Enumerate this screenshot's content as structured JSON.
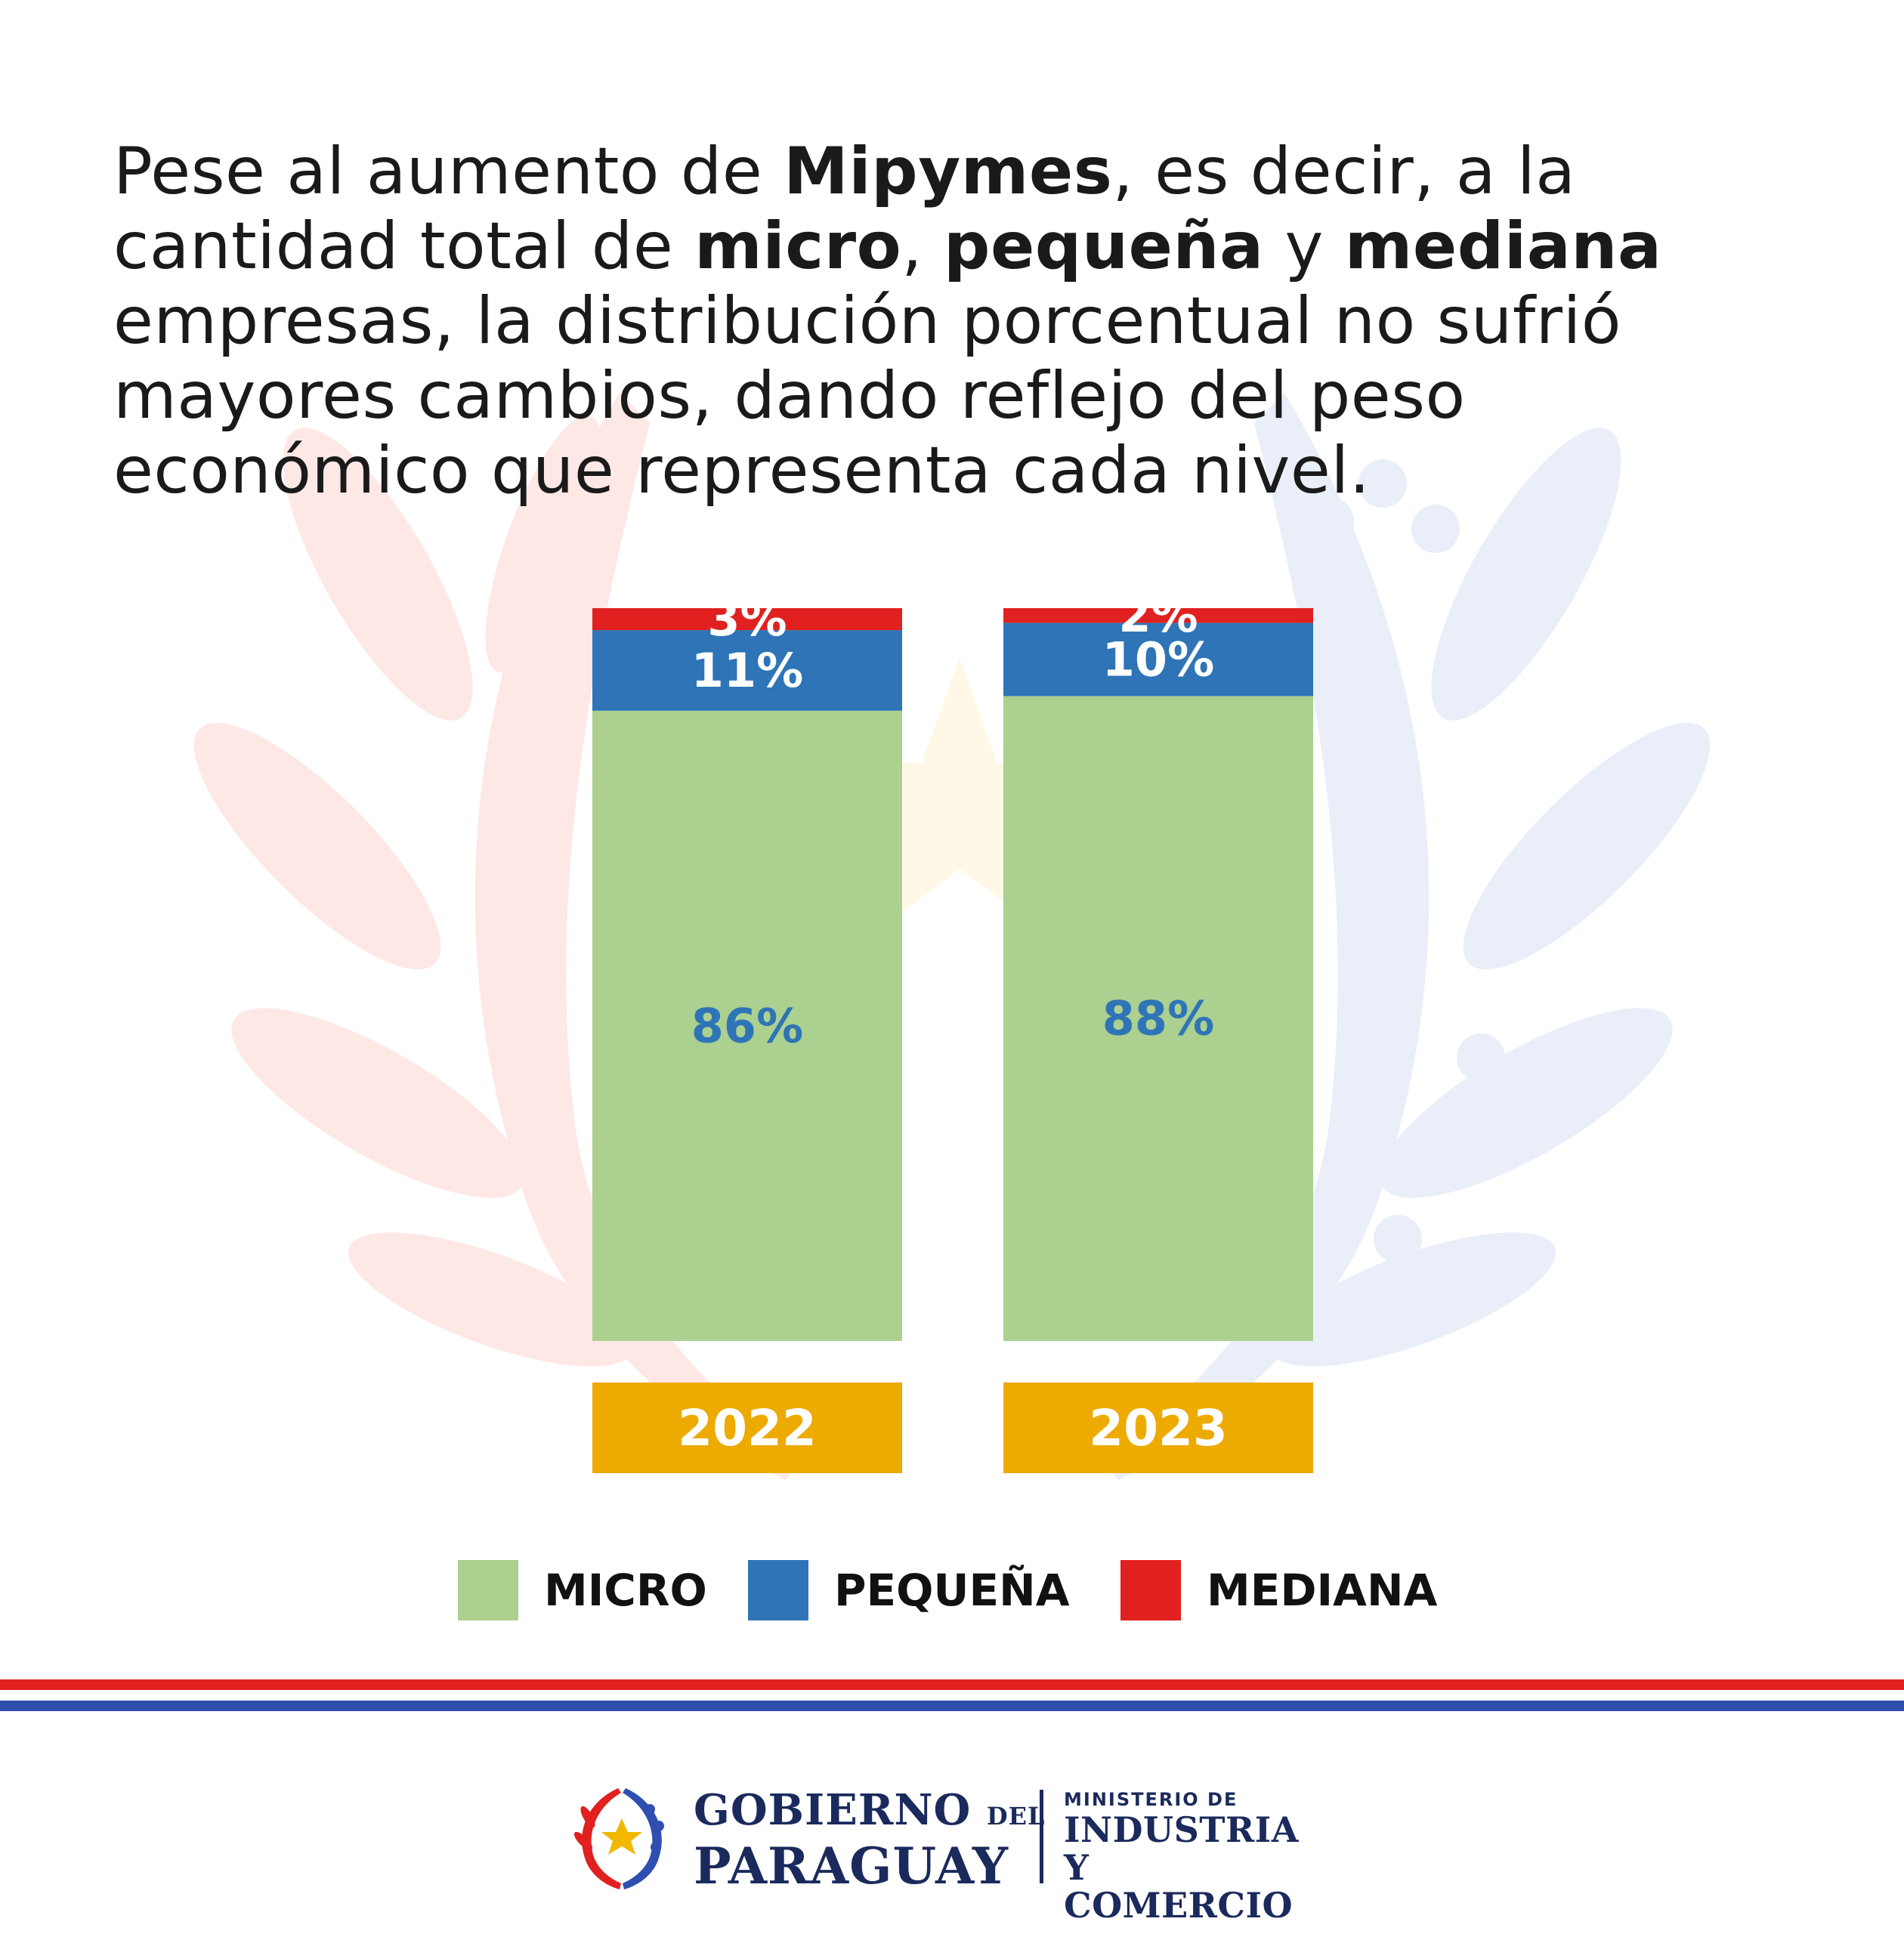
{
  "intro": {
    "p1": "Pese al aumento de ",
    "b1": "Mipymes",
    "p2": ", es decir, a la cantidad total de ",
    "b2": "micro",
    "p3": ", ",
    "b3": "pequeña",
    "p4": " y ",
    "b4": "mediana",
    "p5": " empresas, la distribución porcentual no sufrió mayores cambios, dando reflejo del peso económico que representa cada nivel."
  },
  "colors": {
    "micro": "#abd08f",
    "pequena": "#2e74b7",
    "mediana": "#e0211f",
    "year_box": "#edaa00",
    "micro_label": "#2e74b7",
    "label_white": "#ffffff"
  },
  "chart_data": {
    "type": "bar",
    "stacked": true,
    "normalized_100": true,
    "categories": [
      "2022",
      "2023"
    ],
    "series": [
      {
        "name": "MICRO",
        "values": [
          86,
          88
        ],
        "labels": [
          "86%",
          "88%"
        ]
      },
      {
        "name": "PEQUEÑA",
        "values": [
          11,
          10
        ],
        "labels": [
          "11%",
          "10%"
        ]
      },
      {
        "name": "MEDIANA",
        "values": [
          3,
          2
        ],
        "labels": [
          "3%",
          "2%"
        ]
      }
    ],
    "legend": "bottom"
  },
  "legend": {
    "micro": "MICRO",
    "pequena": "PEQUEÑA",
    "mediana": "MEDIANA"
  },
  "footer": {
    "gov_line1": "GOBIERNO",
    "gov_del": "DEL",
    "gov_line2": "PARAGUAY",
    "min_line1": "MINISTERIO DE",
    "min_line2": "INDUSTRIA Y",
    "min_line3": "COMERCIO"
  }
}
